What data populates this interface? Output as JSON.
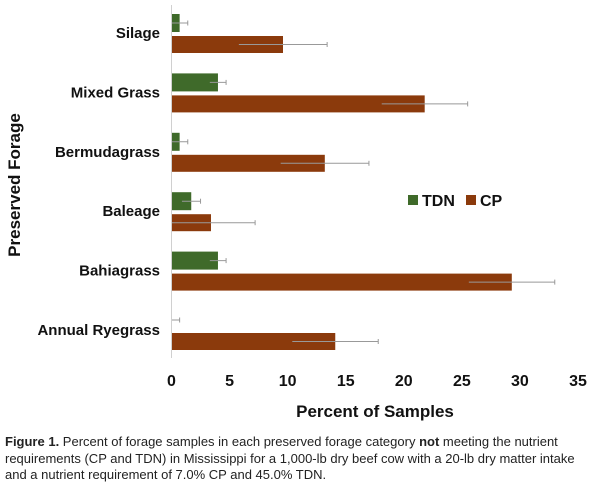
{
  "chart_data": {
    "type": "bar",
    "orientation": "horizontal",
    "categories": [
      "Silage",
      "Mixed Grass",
      "Bermudagrass",
      "Baleage",
      "Bahiagrass",
      "Annual Ryegrass"
    ],
    "series": [
      {
        "name": "TDN",
        "color": "#3f6a2a",
        "values": [
          0.7,
          4.0,
          0.7,
          1.7,
          4.0,
          0.0
        ],
        "error_upper": [
          1.4,
          4.7,
          1.4,
          2.5,
          4.7,
          0.7
        ]
      },
      {
        "name": "CP",
        "color": "#8b3a0c",
        "values": [
          9.6,
          21.8,
          13.2,
          3.4,
          29.3,
          14.1
        ],
        "error_upper": [
          13.4,
          25.5,
          17.0,
          7.2,
          33.0,
          17.8
        ]
      }
    ],
    "xlabel": "Percent of Samples",
    "ylabel": "Preserved Forage",
    "xlim": [
      0,
      35
    ],
    "xticks": [
      "0",
      "5",
      "10",
      "15",
      "20",
      "25",
      "30",
      "35"
    ],
    "grid": false,
    "legend_placement": "right-middle"
  },
  "caption": {
    "label": "Figure 1.",
    "text_before": " Percent of forage samples in each preserved forage category ",
    "emphasis": "not",
    "text_after": " meeting the nutrient requirements (CP and TDN) in Mississippi for a 1,000-lb dry beef cow with a 20-lb dry matter intake and a nutrient requirement of 7.0% CP and 45.0% TDN."
  }
}
